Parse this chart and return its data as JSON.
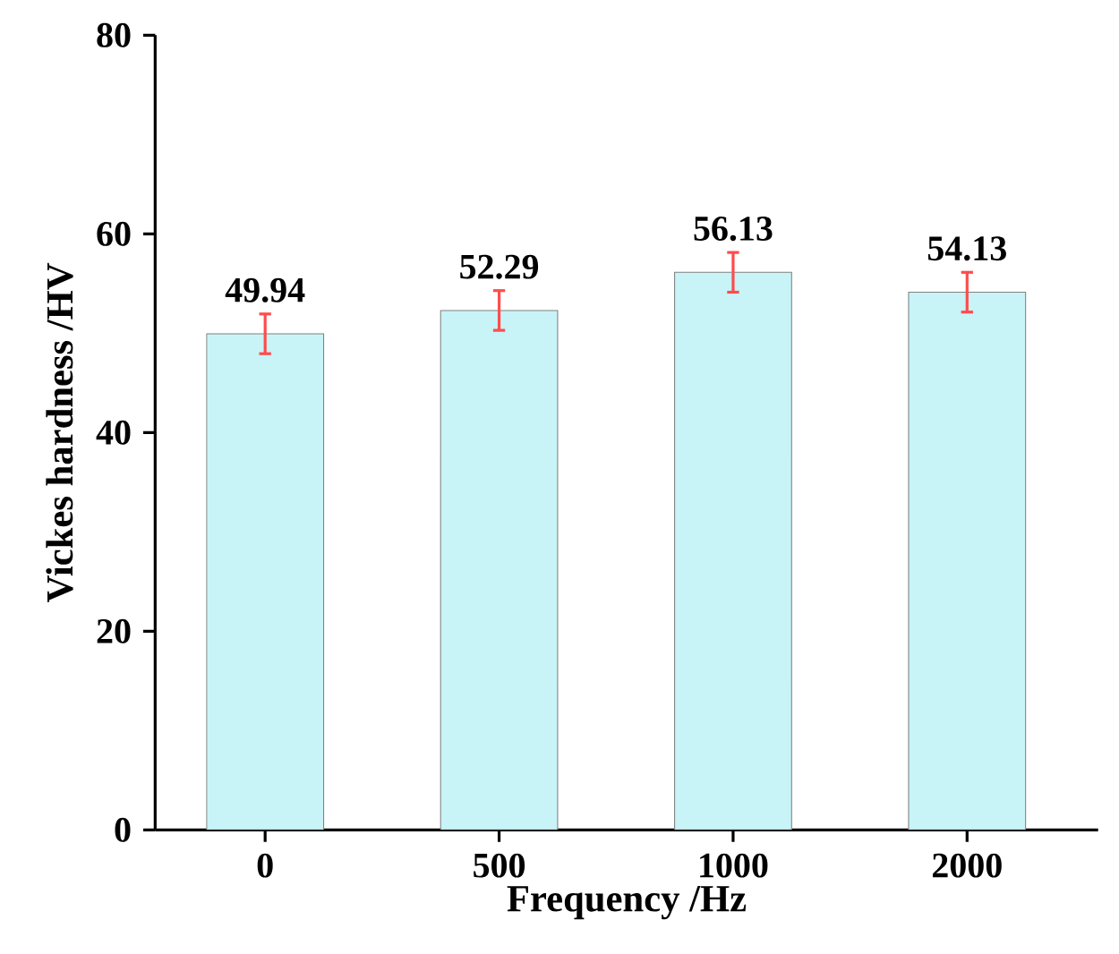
{
  "chart_data": {
    "type": "bar",
    "xlabel": "Frequency /Hz",
    "ylabel": "Vickes hardness /HV",
    "categories": [
      "0",
      "500",
      "1000",
      "2000"
    ],
    "values": [
      49.94,
      52.29,
      56.13,
      54.13
    ],
    "errors": [
      2,
      2,
      2,
      2
    ],
    "color": "#c8f4f8",
    "ylim": [
      0,
      80
    ],
    "yticks": [
      0,
      20,
      40,
      60,
      80
    ],
    "data_labels": true
  }
}
